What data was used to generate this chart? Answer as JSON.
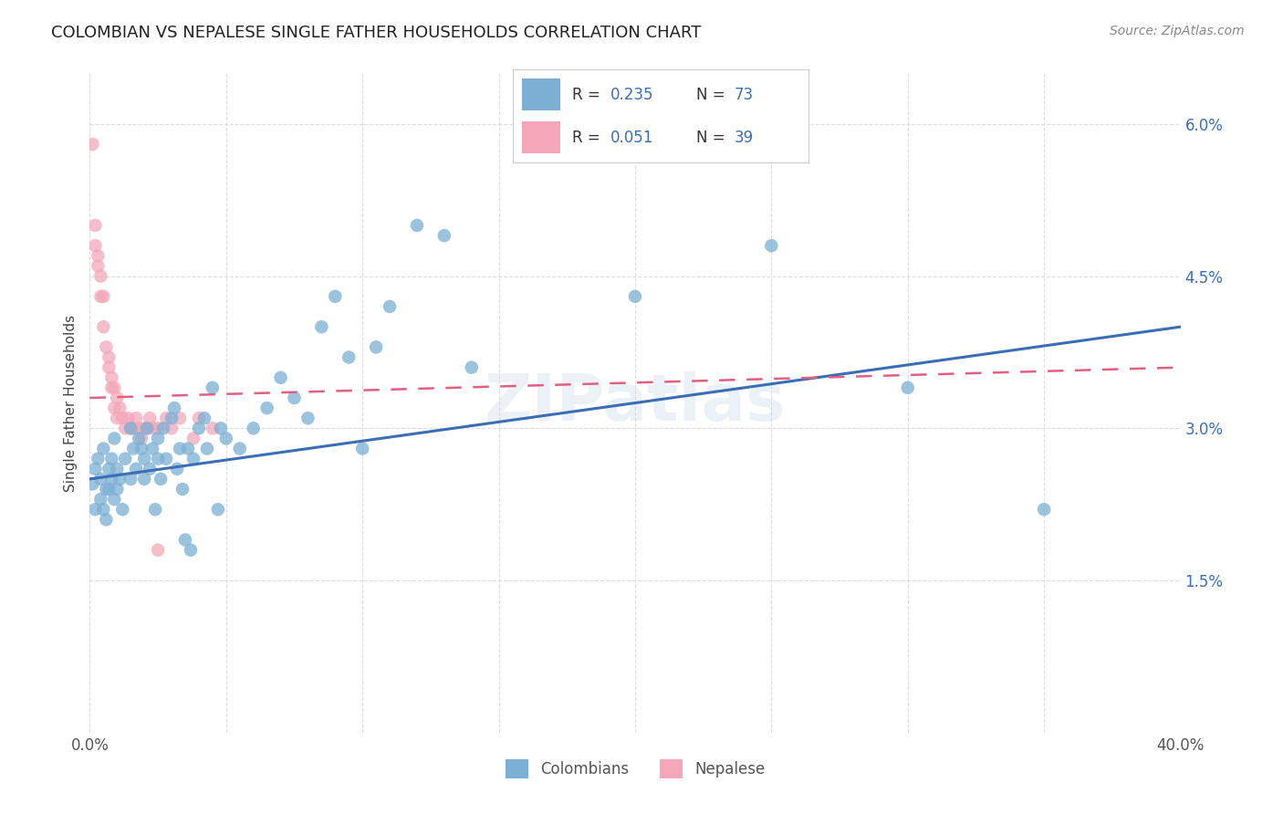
{
  "title": "COLOMBIAN VS NEPALESE SINGLE FATHER HOUSEHOLDS CORRELATION CHART",
  "source": "Source: ZipAtlas.com",
  "ylabel": "Single Father Households",
  "xlim": [
    0.0,
    0.4
  ],
  "ylim": [
    0.0,
    0.065
  ],
  "xticks": [
    0.0,
    0.05,
    0.1,
    0.15,
    0.2,
    0.25,
    0.3,
    0.35,
    0.4
  ],
  "xticklabels": [
    "0.0%",
    "",
    "",
    "",
    "",
    "",
    "",
    "",
    "40.0%"
  ],
  "yticks": [
    0.0,
    0.015,
    0.03,
    0.045,
    0.06
  ],
  "yticklabels": [
    "",
    "1.5%",
    "3.0%",
    "4.5%",
    "6.0%"
  ],
  "legend_series1": "Colombians",
  "legend_series2": "Nepalese",
  "blue_color": "#7bafd4",
  "pink_color": "#f4a7b9",
  "blue_line_color": "#3a6eb5",
  "pink_line_color": "#e06080",
  "legend_r_color": "#3a6eb5",
  "watermark": "ZIPatlas",
  "blue_points": [
    [
      0.001,
      0.0245
    ],
    [
      0.002,
      0.022
    ],
    [
      0.002,
      0.026
    ],
    [
      0.003,
      0.027
    ],
    [
      0.004,
      0.025
    ],
    [
      0.004,
      0.023
    ],
    [
      0.005,
      0.028
    ],
    [
      0.005,
      0.022
    ],
    [
      0.006,
      0.024
    ],
    [
      0.006,
      0.021
    ],
    [
      0.007,
      0.026
    ],
    [
      0.007,
      0.024
    ],
    [
      0.008,
      0.027
    ],
    [
      0.008,
      0.025
    ],
    [
      0.009,
      0.023
    ],
    [
      0.009,
      0.029
    ],
    [
      0.01,
      0.026
    ],
    [
      0.01,
      0.024
    ],
    [
      0.011,
      0.025
    ],
    [
      0.012,
      0.022
    ],
    [
      0.013,
      0.027
    ],
    [
      0.015,
      0.025
    ],
    [
      0.015,
      0.03
    ],
    [
      0.016,
      0.028
    ],
    [
      0.017,
      0.026
    ],
    [
      0.018,
      0.029
    ],
    [
      0.019,
      0.028
    ],
    [
      0.02,
      0.027
    ],
    [
      0.02,
      0.025
    ],
    [
      0.021,
      0.03
    ],
    [
      0.022,
      0.026
    ],
    [
      0.023,
      0.028
    ],
    [
      0.024,
      0.022
    ],
    [
      0.025,
      0.029
    ],
    [
      0.025,
      0.027
    ],
    [
      0.026,
      0.025
    ],
    [
      0.027,
      0.03
    ],
    [
      0.028,
      0.027
    ],
    [
      0.03,
      0.031
    ],
    [
      0.031,
      0.032
    ],
    [
      0.032,
      0.026
    ],
    [
      0.033,
      0.028
    ],
    [
      0.034,
      0.024
    ],
    [
      0.035,
      0.019
    ],
    [
      0.036,
      0.028
    ],
    [
      0.037,
      0.018
    ],
    [
      0.038,
      0.027
    ],
    [
      0.04,
      0.03
    ],
    [
      0.042,
      0.031
    ],
    [
      0.043,
      0.028
    ],
    [
      0.045,
      0.034
    ],
    [
      0.047,
      0.022
    ],
    [
      0.048,
      0.03
    ],
    [
      0.05,
      0.029
    ],
    [
      0.055,
      0.028
    ],
    [
      0.06,
      0.03
    ],
    [
      0.065,
      0.032
    ],
    [
      0.07,
      0.035
    ],
    [
      0.075,
      0.033
    ],
    [
      0.08,
      0.031
    ],
    [
      0.085,
      0.04
    ],
    [
      0.09,
      0.043
    ],
    [
      0.095,
      0.037
    ],
    [
      0.1,
      0.028
    ],
    [
      0.105,
      0.038
    ],
    [
      0.11,
      0.042
    ],
    [
      0.12,
      0.05
    ],
    [
      0.13,
      0.049
    ],
    [
      0.14,
      0.036
    ],
    [
      0.2,
      0.043
    ],
    [
      0.25,
      0.048
    ],
    [
      0.3,
      0.034
    ],
    [
      0.35,
      0.022
    ]
  ],
  "pink_points": [
    [
      0.001,
      0.058
    ],
    [
      0.002,
      0.05
    ],
    [
      0.002,
      0.048
    ],
    [
      0.003,
      0.047
    ],
    [
      0.003,
      0.046
    ],
    [
      0.004,
      0.045
    ],
    [
      0.004,
      0.043
    ],
    [
      0.005,
      0.043
    ],
    [
      0.005,
      0.04
    ],
    [
      0.006,
      0.038
    ],
    [
      0.007,
      0.037
    ],
    [
      0.007,
      0.036
    ],
    [
      0.008,
      0.035
    ],
    [
      0.008,
      0.034
    ],
    [
      0.009,
      0.034
    ],
    [
      0.009,
      0.032
    ],
    [
      0.01,
      0.033
    ],
    [
      0.01,
      0.031
    ],
    [
      0.011,
      0.032
    ],
    [
      0.012,
      0.031
    ],
    [
      0.013,
      0.03
    ],
    [
      0.014,
      0.031
    ],
    [
      0.015,
      0.03
    ],
    [
      0.016,
      0.03
    ],
    [
      0.017,
      0.031
    ],
    [
      0.018,
      0.03
    ],
    [
      0.019,
      0.029
    ],
    [
      0.02,
      0.03
    ],
    [
      0.021,
      0.03
    ],
    [
      0.022,
      0.031
    ],
    [
      0.023,
      0.03
    ],
    [
      0.025,
      0.03
    ],
    [
      0.028,
      0.031
    ],
    [
      0.03,
      0.03
    ],
    [
      0.033,
      0.031
    ],
    [
      0.038,
      0.029
    ],
    [
      0.04,
      0.031
    ],
    [
      0.045,
      0.03
    ],
    [
      0.025,
      0.018
    ]
  ]
}
